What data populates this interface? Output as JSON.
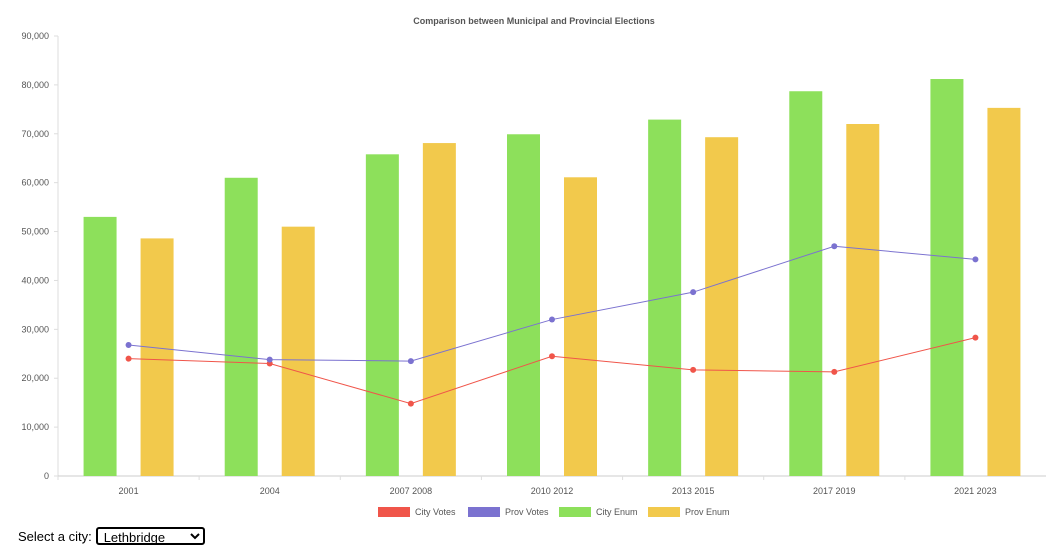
{
  "chart_data": {
    "type": "bar",
    "title": "Comparison between Municipal and Provincial Elections",
    "categories": [
      "2001",
      "2004",
      "2007 2008",
      "2010 2012",
      "2013 2015",
      "2017 2019",
      "2021 2023"
    ],
    "ylim": [
      0,
      90000
    ],
    "yticks": [
      "0",
      "10,000",
      "20,000",
      "30,000",
      "40,000",
      "50,000",
      "60,000",
      "70,000",
      "80,000",
      "90,000"
    ],
    "grid": false,
    "legend_position": "bottom",
    "series": [
      {
        "name": "City Votes",
        "kind": "line",
        "color": "#f0554a",
        "values": [
          24000,
          23000,
          14800,
          24500,
          21700,
          21300,
          28300
        ]
      },
      {
        "name": "Prov Votes",
        "kind": "line",
        "color": "#7b72d0",
        "values": [
          26800,
          23800,
          23500,
          32000,
          37600,
          47000,
          44300
        ]
      },
      {
        "name": "City Enum",
        "kind": "bar",
        "color": "#8de05b",
        "values": [
          53000,
          61000,
          65800,
          69900,
          72900,
          78700,
          81200
        ]
      },
      {
        "name": "Prov Enum",
        "kind": "bar",
        "color": "#f2c94c",
        "values": [
          48600,
          51000,
          68100,
          61100,
          69300,
          72000,
          75300
        ]
      }
    ]
  },
  "controls": {
    "select_label": "Select a city:",
    "selected_city": "Lethbridge"
  }
}
